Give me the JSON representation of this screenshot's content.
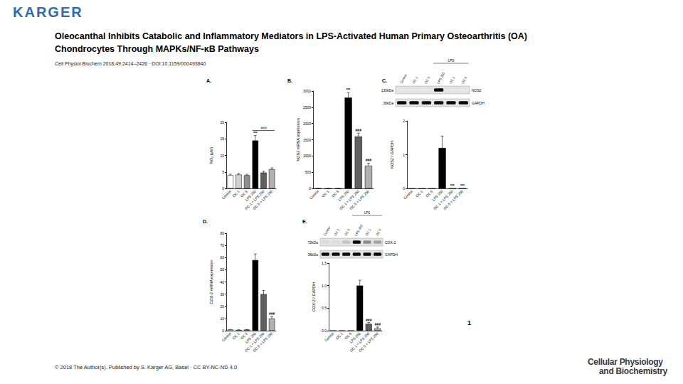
{
  "header": {
    "publisher": "KARGER",
    "title": [
      "Oleocanthal Inhibits Catabolic and Inflammatory Mediators in LPS-Activated Human Primary Osteoarthritis (OA)",
      "Chondrocytes Through MAPKs/NF-κB Pathways"
    ],
    "citation": "Cell Physiol Biochem 2018;49:2414–2426 · DOI:10.1159/000493840",
    "footer": "© 2018 The Author(s). Published by S. Karger AG, Basel · CC BY-NC-ND 4.0",
    "journal": [
      "Cellular Physiology",
      "and Biochemistry"
    ],
    "page": "1"
  },
  "chart_data": [
    {
      "panel": "A.",
      "type": "bar",
      "y_label": "NO₂ (µM)",
      "categories": [
        "Control",
        "OC 1",
        "OC 5",
        "LPS 250",
        "OC 1 + LPS 250",
        "OC 5 + LPS 250"
      ],
      "values": [
        4,
        4.2,
        4,
        14.5,
        4.8,
        5.8
      ],
      "errors": [
        0.3,
        0.3,
        0.3,
        1.5,
        0.4,
        0.4
      ],
      "colors": [
        "#ffffff",
        "#d0d0d0",
        "#909090",
        "#000000",
        "#606060",
        "#b0b0b0"
      ],
      "annotations": [
        null,
        null,
        null,
        "***",
        null,
        null
      ],
      "bracket": {
        "label": "###",
        "from": 3,
        "to": 5,
        "at": 17.5
      },
      "ylim": [
        0,
        20
      ],
      "yticks": [
        0,
        5,
        10,
        15,
        20
      ],
      "grid": false
    },
    {
      "panel": "B.",
      "type": "bar",
      "y_label": "NOS2 mRNA expression",
      "categories": [
        "Control",
        "OC 1",
        "OC 5",
        "LPS 250",
        "OC 1 + LPS 250",
        "OC 5 + LPS 250"
      ],
      "values": [
        1,
        0.7,
        0.5,
        2800,
        1600,
        700
      ],
      "errors": [
        0.1,
        0.1,
        0.1,
        150,
        100,
        80
      ],
      "colors": [
        "#ffffff",
        "#d0d0d0",
        "#909090",
        "#000000",
        "#606060",
        "#b0b0b0"
      ],
      "annotations": [
        null,
        null,
        null,
        "***",
        "###",
        "###"
      ],
      "ylim": [
        0,
        3000
      ],
      "yticks": [
        0,
        500,
        1000,
        1500,
        2000,
        2500,
        3000
      ],
      "grid": false
    },
    {
      "panel": "C.",
      "type": "bar",
      "y_label": "NOS2 / GAPDH",
      "categories": [
        "Control",
        "OC 1",
        "OC 5",
        "LPS 250",
        "OC 1 + LPS 250",
        "OC 5 + LPS 250"
      ],
      "values": [
        0,
        0,
        0,
        1.2,
        0,
        0
      ],
      "errors": [
        0,
        0,
        0,
        0.35,
        0,
        0
      ],
      "colors": [
        "#ffffff",
        "#d0d0d0",
        "#909090",
        "#000000",
        "#606060",
        "#b0b0b0"
      ],
      "annotations": [
        null,
        null,
        null,
        null,
        "***",
        "***"
      ],
      "ylim": [
        0,
        2
      ],
      "yticks": [
        0,
        1,
        2
      ],
      "grid": false
    },
    {
      "panel": "D.",
      "type": "bar",
      "y_label": "COX-2 mRNA expression",
      "categories": [
        "Control",
        "OC 1",
        "OC 5",
        "LPS 250",
        "OC 1 + LPS 250",
        "OC 5 + LPS 250"
      ],
      "values": [
        1,
        0.6,
        0.9,
        58,
        30,
        10
      ],
      "errors": [
        0.1,
        0.1,
        0.1,
        5,
        3,
        1.5
      ],
      "colors": [
        "#ffffff",
        "#d0d0d0",
        "#909090",
        "#000000",
        "#606060",
        "#b0b0b0"
      ],
      "annotations": [
        null,
        null,
        null,
        null,
        null,
        "###"
      ],
      "ylim": [
        0,
        80
      ],
      "yticks": [
        0,
        10,
        20,
        30,
        40,
        50,
        60,
        70,
        80
      ],
      "grid": false
    },
    {
      "panel": "E.",
      "type": "bar",
      "y_label": "COX-2 / GAPDH",
      "categories": [
        "Control",
        "OC 1",
        "OC 5",
        "LPS 250",
        "OC 1 + LPS 250",
        "OC 5 + LPS 250"
      ],
      "values": [
        0,
        0,
        0,
        1.0,
        0.15,
        0.05
      ],
      "errors": [
        0,
        0,
        0,
        0.12,
        0.03,
        0.03
      ],
      "colors": [
        "#ffffff",
        "#d0d0d0",
        "#909090",
        "#000000",
        "#606060",
        "#b0b0b0"
      ],
      "annotations": [
        null,
        null,
        null,
        null,
        "###",
        "###"
      ],
      "ylim": [
        0,
        1.5
      ],
      "yticks": [
        {
          "value": 0,
          "label": "0.0"
        },
        {
          "value": 0.5,
          "label": "0.5"
        },
        {
          "value": 1,
          "label": "1.0"
        },
        {
          "value": 1.5,
          "label": "1.5"
        }
      ],
      "grid": false
    }
  ],
  "blots": [
    {
      "panel": "C.",
      "columns": [
        "Control",
        "OC 1",
        "OC 5",
        "LPS 250",
        "OC 1",
        "OC 5"
      ],
      "group": {
        "label": "LPS",
        "from": 3,
        "to": 5
      },
      "rows": [
        {
          "size": "130kDa",
          "protein": "NOS2",
          "intensity": [
            0,
            0,
            0,
            1,
            0,
            0
          ]
        },
        {
          "size": "36kDa",
          "protein": "GAPDH",
          "intensity": [
            1,
            1,
            1,
            1,
            1,
            1
          ]
        }
      ]
    },
    {
      "panel": "E.",
      "columns": [
        "Control",
        "OC 1",
        "OC 5",
        "LPS 250",
        "OC 1",
        "OC 5"
      ],
      "group": {
        "label": "LPS",
        "from": 3,
        "to": 5
      },
      "rows": [
        {
          "size": "72kDa",
          "protein": "COX-2",
          "intensity": [
            0.05,
            0.05,
            0.15,
            1,
            0.4,
            0.3
          ]
        },
        {
          "size": "36kDa",
          "protein": "GAPDH",
          "intensity": [
            1,
            1,
            1,
            1,
            1,
            1
          ]
        }
      ]
    }
  ]
}
